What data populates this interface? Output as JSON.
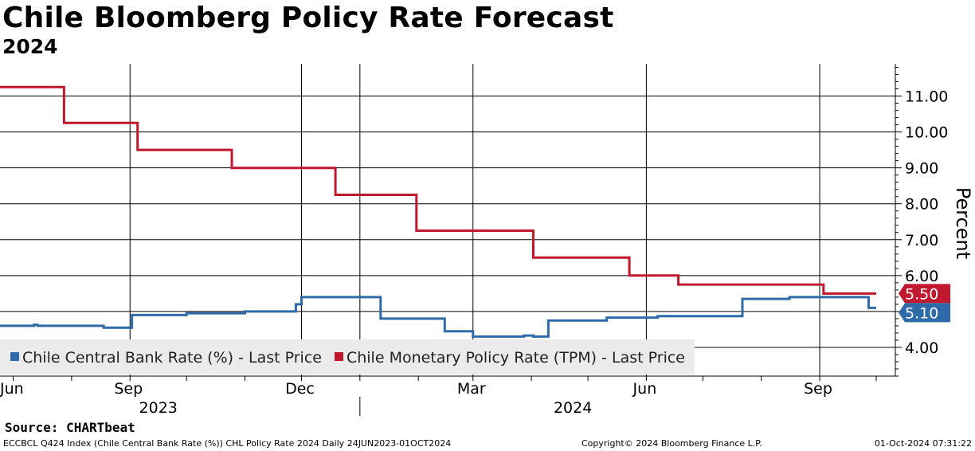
{
  "header": {
    "title": "Chile Bloomberg Policy Rate Forecast",
    "subtitle": "2024"
  },
  "chart_data": {
    "type": "line",
    "ylabel": "Percent",
    "ylim": [
      3.2,
      11.9
    ],
    "y_ticks": [
      4,
      5,
      6,
      7,
      8,
      9,
      10,
      11
    ],
    "y_tick_labels": [
      "4.00",
      "5.00",
      "6.00",
      "7.00",
      "8.00",
      "9.00",
      "10.00",
      "11.00"
    ],
    "x_start": "2023-06-24",
    "x_end": "2024-10-01",
    "month_ticks": [
      {
        "date": "2023-06-01",
        "label": "Jun",
        "grid": false
      },
      {
        "date": "2023-07-01",
        "label": "",
        "grid": false
      },
      {
        "date": "2023-08-01",
        "label": "",
        "grid": false
      },
      {
        "date": "2023-09-01",
        "label": "Sep",
        "grid": true
      },
      {
        "date": "2023-10-01",
        "label": "",
        "grid": false
      },
      {
        "date": "2023-11-01",
        "label": "",
        "grid": false
      },
      {
        "date": "2023-12-01",
        "label": "Dec",
        "grid": true
      },
      {
        "date": "2024-01-01",
        "label": "",
        "grid": true
      },
      {
        "date": "2024-02-01",
        "label": "",
        "grid": false
      },
      {
        "date": "2024-03-01",
        "label": "Mar",
        "grid": true
      },
      {
        "date": "2024-04-01",
        "label": "",
        "grid": false
      },
      {
        "date": "2024-05-01",
        "label": "",
        "grid": false
      },
      {
        "date": "2024-06-01",
        "label": "Jun",
        "grid": true
      },
      {
        "date": "2024-07-01",
        "label": "",
        "grid": false
      },
      {
        "date": "2024-08-01",
        "label": "",
        "grid": false
      },
      {
        "date": "2024-09-01",
        "label": "Sep",
        "grid": true
      },
      {
        "date": "2024-10-01",
        "label": "",
        "grid": false
      }
    ],
    "year_labels": [
      {
        "label": "2023",
        "date": "2023-09-16"
      },
      {
        "label": "2024",
        "date": "2024-04-23"
      }
    ],
    "year_separator": "2024-01-01",
    "grid": true,
    "legend_position": "bottom-left",
    "series": [
      {
        "name": "Chile Central Bank Rate (%) - Last Price",
        "color": "#2e6ba8",
        "last_label": "5.10",
        "step": true,
        "points": [
          [
            "2023-06-24",
            4.6
          ],
          [
            "2023-07-10",
            4.6
          ],
          [
            "2023-07-12",
            4.63
          ],
          [
            "2023-07-14",
            4.6
          ],
          [
            "2023-08-14",
            4.6
          ],
          [
            "2023-08-18",
            4.55
          ],
          [
            "2023-09-01",
            4.55
          ],
          [
            "2023-09-02",
            4.9
          ],
          [
            "2023-10-01",
            4.95
          ],
          [
            "2023-11-01",
            5.0
          ],
          [
            "2023-11-28",
            5.2
          ],
          [
            "2023-12-01",
            5.4
          ],
          [
            "2024-01-12",
            4.8
          ],
          [
            "2024-02-15",
            4.45
          ],
          [
            "2024-03-01",
            4.3
          ],
          [
            "2024-03-25",
            4.3
          ],
          [
            "2024-03-28",
            4.33
          ],
          [
            "2024-04-02",
            4.3
          ],
          [
            "2024-04-10",
            4.75
          ],
          [
            "2024-05-11",
            4.83
          ],
          [
            "2024-06-07",
            4.87
          ],
          [
            "2024-07-22",
            5.35
          ],
          [
            "2024-08-16",
            5.4
          ],
          [
            "2024-09-26",
            5.4
          ],
          [
            "2024-09-27",
            5.1
          ],
          [
            "2024-10-01",
            5.1
          ]
        ]
      },
      {
        "name": "Chile Monetary Policy Rate (TPM) - Last Price",
        "color": "#c0182e",
        "last_label": "5.50",
        "step": true,
        "points": [
          [
            "2023-06-24",
            11.25
          ],
          [
            "2023-07-28",
            10.25
          ],
          [
            "2023-09-05",
            9.5
          ],
          [
            "2023-10-25",
            9.0
          ],
          [
            "2023-12-19",
            8.25
          ],
          [
            "2024-01-31",
            7.25
          ],
          [
            "2024-04-02",
            6.5
          ],
          [
            "2024-05-23",
            6.0
          ],
          [
            "2024-06-18",
            5.75
          ],
          [
            "2024-09-03",
            5.5
          ],
          [
            "2024-10-01",
            5.5
          ]
        ]
      }
    ]
  },
  "source": "Source: CHARTbeat",
  "footer": {
    "left": "ECCBCL Q424 Index (Chile Central Bank Rate (%)) CHL Policy Rate 2024  Daily 24JUN2023-01OCT2024",
    "middle": "Copyright© 2024 Bloomberg Finance L.P.",
    "right": "01-Oct-2024 07:31:22"
  }
}
